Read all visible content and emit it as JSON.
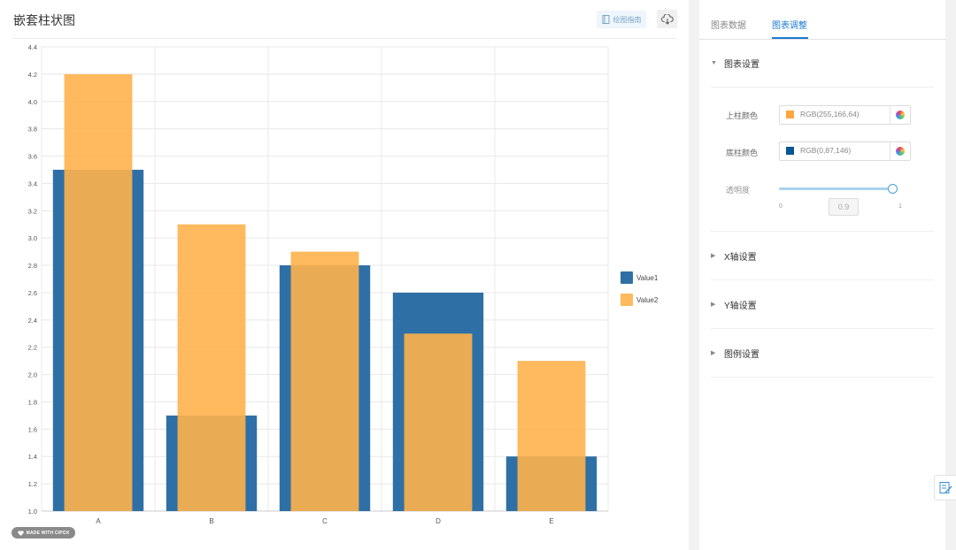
{
  "header": {
    "title": "嵌套柱状图",
    "guide_label": "绘图指南",
    "guide_icon": "book-icon",
    "download_icon": "cloud-download-icon"
  },
  "watermark": {
    "text": "MADE WITH CIPOX"
  },
  "chart_data": {
    "type": "bar",
    "categories": [
      "A",
      "B",
      "C",
      "D",
      "E"
    ],
    "series": [
      {
        "name": "Value1",
        "values": [
          3.5,
          1.7,
          2.8,
          2.6,
          1.4
        ],
        "color": "#2e70a6"
      },
      {
        "name": "Value2",
        "values": [
          4.2,
          3.1,
          2.9,
          2.3,
          2.1
        ],
        "color": "#ffb14c"
      }
    ],
    "ylim": [
      1.0,
      4.4
    ],
    "yticks": [
      "1.0",
      "1.2",
      "1.4",
      "1.6",
      "1.8",
      "2.0",
      "2.2",
      "2.4",
      "2.6",
      "2.8",
      "3.0",
      "3.2",
      "3.4",
      "3.6",
      "3.8",
      "4.0",
      "4.2",
      "4.4"
    ],
    "grid": true,
    "legend_position": "right",
    "layout": "nested"
  },
  "sidebar": {
    "tabs": [
      {
        "label": "图表数据"
      },
      {
        "label": "图表调整",
        "active": true
      }
    ],
    "sections": [
      {
        "label": "图表设置",
        "expanded": true
      },
      {
        "label": "X轴设置",
        "expanded": false
      },
      {
        "label": "Y轴设置",
        "expanded": false
      },
      {
        "label": "图例设置",
        "expanded": false
      }
    ],
    "chart_settings": {
      "top_color_label": "上柱颜色",
      "top_color_value": "RGB(255,166,64)",
      "top_color_hex": "#ffa640",
      "bottom_color_label": "底柱颜色",
      "bottom_color_value": "RGB(0,87,146)",
      "bottom_color_hex": "#005792",
      "opacity_label": "透明度",
      "opacity_min": "0",
      "opacity_max": "1",
      "opacity_value": "0.9"
    }
  },
  "float_button": {
    "icon": "edit-note-icon"
  }
}
